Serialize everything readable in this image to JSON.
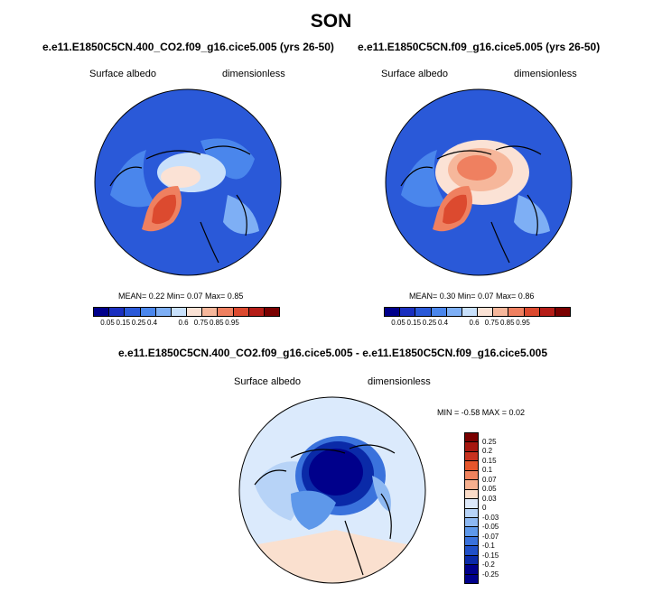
{
  "title": "SON",
  "colors": {
    "seq": [
      "#00008b",
      "#1a2fbf",
      "#2a59d8",
      "#4a86ec",
      "#7eaff5",
      "#c8e0fb",
      "#fbe2d5",
      "#f6b79b",
      "#ef8060",
      "#dc4a2f",
      "#b51d17",
      "#7a0000"
    ],
    "div": [
      "#7a0000",
      "#a6170f",
      "#c8321f",
      "#e5562c",
      "#f0835e",
      "#f7b08f",
      "#fbdcc8",
      "#dde9fa",
      "#b7d3f7",
      "#8db8f2",
      "#5e98ea",
      "#3a72dc",
      "#2050c8",
      "#0a2aa8",
      "#00008b"
    ],
    "ocean_blue": "#2a59d8",
    "ocean_pale": "#dbeafc",
    "pale_orange": "#fae0cf"
  },
  "panels": [
    {
      "title": "e.e11.E1850C5CN.400_CO2.f09_g16.cice5.005 (yrs 26-50)",
      "left_label": "Surface albedo",
      "right_label": "dimensionless",
      "stats": "MEAN=  0.22  Min=   0.07  Max=   0.85",
      "colorbar_ticks": [
        "0.05",
        "0.15",
        "0.25",
        "0.4",
        "0.6",
        "0.75",
        "0.85",
        "0.95"
      ]
    },
    {
      "title": "e.e11.E1850C5CN.f09_g16.cice5.005 (yrs 26-50)",
      "left_label": "Surface albedo",
      "right_label": "dimensionless",
      "stats": "MEAN=  0.30  Min=   0.07  Max=   0.86",
      "colorbar_ticks": [
        "0.05",
        "0.15",
        "0.25",
        "0.4",
        "0.6",
        "0.75",
        "0.85",
        "0.95"
      ]
    },
    {
      "title": "e.e11.E1850C5CN.400_CO2.f09_g16.cice5.005 - e.e11.E1850C5CN.f09_g16.cice5.005",
      "left_label": "Surface albedo",
      "right_label": "dimensionless",
      "stats": "MIN =  -0.58  MAX =   0.02",
      "colorbar_ticks": [
        "0.25",
        "0.2",
        "0.15",
        "0.1",
        "0.07",
        "0.05",
        "0.03",
        "0",
        "-0.03",
        "-0.05",
        "-0.07",
        "-0.1",
        "-0.15",
        "-0.2",
        "-0.25"
      ]
    }
  ],
  "chart_data": [
    {
      "type": "heatmap",
      "title": "e.e11.E1850C5CN.400_CO2.f09_g16.cice5.005 (yrs 26-50)",
      "variable": "Surface albedo",
      "units": "dimensionless",
      "projection": "north polar stereographic",
      "mean": 0.22,
      "min": 0.07,
      "max": 0.85,
      "colorbar_levels": [
        0.05,
        0.15,
        0.25,
        0.4,
        0.6,
        0.75,
        0.85,
        0.95
      ]
    },
    {
      "type": "heatmap",
      "title": "e.e11.E1850C5CN.f09_g16.cice5.005 (yrs 26-50)",
      "variable": "Surface albedo",
      "units": "dimensionless",
      "projection": "north polar stereographic",
      "mean": 0.3,
      "min": 0.07,
      "max": 0.86,
      "colorbar_levels": [
        0.05,
        0.15,
        0.25,
        0.4,
        0.6,
        0.75,
        0.85,
        0.95
      ]
    },
    {
      "type": "heatmap",
      "title": "e.e11.E1850C5CN.400_CO2.f09_g16.cice5.005 - e.e11.E1850C5CN.f09_g16.cice5.005",
      "variable": "Surface albedo",
      "units": "dimensionless",
      "projection": "north polar stereographic",
      "min": -0.58,
      "max": 0.02,
      "colorbar_levels": [
        0.25,
        0.2,
        0.15,
        0.1,
        0.07,
        0.05,
        0.03,
        0,
        -0.03,
        -0.05,
        -0.07,
        -0.1,
        -0.15,
        -0.2,
        -0.25
      ]
    }
  ]
}
